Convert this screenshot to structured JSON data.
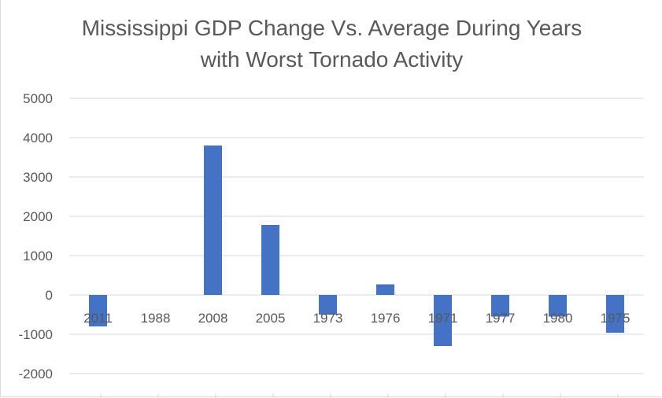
{
  "chart_data": {
    "type": "bar",
    "title_line1": "Mississippi GDP Change Vs. Average During Years",
    "title_line2": "with Worst Tornado Activity",
    "categories": [
      "2011",
      "1988",
      "2008",
      "2005",
      "1973",
      "1976",
      "1971",
      "1977",
      "1980",
      "1975"
    ],
    "values": [
      -800,
      0,
      3800,
      1780,
      -500,
      270,
      -1300,
      -550,
      -550,
      -960
    ],
    "ylim": [
      -2000,
      5000
    ],
    "yticks": [
      "5000",
      "4000",
      "3000",
      "2000",
      "1000",
      "0",
      "-1000",
      "-2000"
    ],
    "ytick_values": [
      5000,
      4000,
      3000,
      2000,
      1000,
      0,
      -1000,
      -2000
    ],
    "grid": true,
    "legend": "none",
    "bar_color": "#4472c4",
    "label_color": "#595959",
    "grid_color": "#d9d9d9"
  }
}
